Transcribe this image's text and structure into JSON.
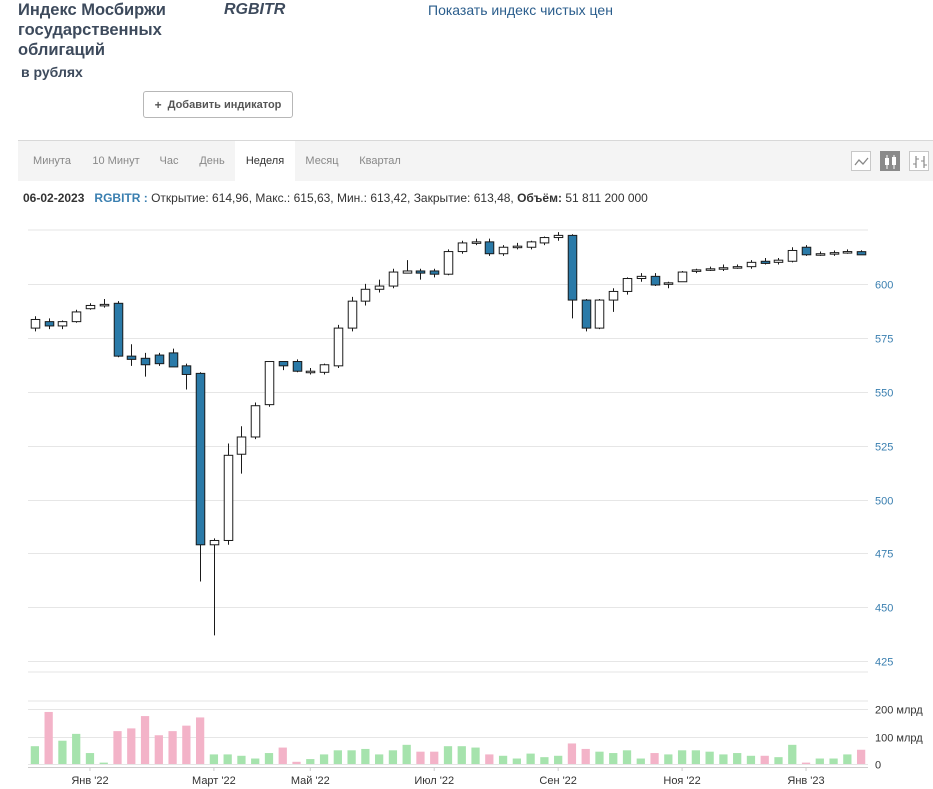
{
  "header": {
    "title": "Индекс Мосбиржи государственных облигаций",
    "subtitle": "в рублях",
    "ticker": "RGBITR",
    "clean_price_link": "Показать индекс чистых цен",
    "add_indicator_label": "Добавить индикатор"
  },
  "tabs": [
    {
      "label": "Минута",
      "active": false
    },
    {
      "label": "10 Минут",
      "active": false
    },
    {
      "label": "Час",
      "active": false
    },
    {
      "label": "День",
      "active": false
    },
    {
      "label": "Неделя",
      "active": true
    },
    {
      "label": "Месяц",
      "active": false
    },
    {
      "label": "Квартал",
      "active": false
    }
  ],
  "chart_types": [
    {
      "icon": "line-chart-icon",
      "active": false
    },
    {
      "icon": "candlestick-chart-icon",
      "active": true
    },
    {
      "icon": "ohlc-chart-icon",
      "active": false
    }
  ],
  "info_bar": {
    "date": "06-02-2023",
    "symbol": "RGBITR :",
    "open_label": "Открытие:",
    "open": "614,96",
    "high_label": "Макс.:",
    "high": "615,63",
    "low_label": "Мин.:",
    "low": "613,42",
    "close_label": "Закрытие:",
    "close": "613,48",
    "volume_label": "Объём:",
    "volume": "51 811 200 000"
  },
  "colors": {
    "up_fill": "#ffffff",
    "down_fill": "#2a7aa8",
    "candle_stroke": "#1a1a1a",
    "volume_up": "#a6e3ad",
    "volume_down": "#f3b3c8",
    "grid": "#e6e6e6",
    "axis_text": "#3a7fb0"
  },
  "chart_data": {
    "type": "candlestick",
    "ylim": [
      420,
      625
    ],
    "yticks": [
      425,
      450,
      475,
      500,
      525,
      550,
      575,
      600
    ],
    "volume_ylim": [
      0,
      230
    ],
    "volume_ticks": [
      {
        "value": 0,
        "label": "0"
      },
      {
        "value": 100,
        "label": "100 млрд"
      },
      {
        "value": 200,
        "label": "200 млрд"
      }
    ],
    "x_labels": [
      {
        "index": 4,
        "label": "Янв '22"
      },
      {
        "index": 13,
        "label": "Март '22"
      },
      {
        "index": 20,
        "label": "Май '22"
      },
      {
        "index": 29,
        "label": "Июл '22"
      },
      {
        "index": 38,
        "label": "Сен '22"
      },
      {
        "index": 47,
        "label": "Ноя '22"
      },
      {
        "index": 56,
        "label": "Янв '23"
      }
    ],
    "candles": [
      {
        "o": 579.5,
        "h": 585,
        "l": 578,
        "c": 583.5,
        "v": 65
      },
      {
        "o": 582.5,
        "h": 584,
        "l": 579,
        "c": 580.5,
        "v": 190
      },
      {
        "o": 580.5,
        "h": 583,
        "l": 579,
        "c": 582.5,
        "v": 85
      },
      {
        "o": 582.5,
        "h": 588,
        "l": 582,
        "c": 587,
        "v": 110
      },
      {
        "o": 588.5,
        "h": 591,
        "l": 588,
        "c": 590,
        "v": 40
      },
      {
        "o": 590,
        "h": 593,
        "l": 589,
        "c": 590.5,
        "v": 5
      },
      {
        "o": 591,
        "h": 592,
        "l": 566,
        "c": 566.5,
        "v": 120
      },
      {
        "o": 566.5,
        "h": 572,
        "l": 562,
        "c": 565,
        "v": 130
      },
      {
        "o": 565.5,
        "h": 568,
        "l": 557,
        "c": 562.5,
        "v": 175
      },
      {
        "o": 567,
        "h": 568,
        "l": 562,
        "c": 563,
        "v": 105
      },
      {
        "o": 568,
        "h": 570,
        "l": 562,
        "c": 561.5,
        "v": 120
      },
      {
        "o": 562,
        "h": 563,
        "l": 551,
        "c": 558,
        "v": 140
      },
      {
        "o": 558.5,
        "h": 559,
        "l": 462,
        "c": 479,
        "v": 170
      },
      {
        "o": 479,
        "h": 482,
        "l": 437,
        "c": 481,
        "v": 35
      },
      {
        "o": 481,
        "h": 526,
        "l": 479,
        "c": 520.5,
        "v": 35
      },
      {
        "o": 521,
        "h": 534,
        "l": 512,
        "c": 529,
        "v": 30
      },
      {
        "o": 529,
        "h": 545,
        "l": 528,
        "c": 543.5,
        "v": 20
      },
      {
        "o": 544,
        "h": 564,
        "l": 543,
        "c": 564,
        "v": 40
      },
      {
        "o": 564,
        "h": 564,
        "l": 560,
        "c": 562,
        "v": 60
      },
      {
        "o": 564,
        "h": 565,
        "l": 559,
        "c": 559.5,
        "v": 8
      },
      {
        "o": 559,
        "h": 561,
        "l": 558,
        "c": 559.5,
        "v": 18
      },
      {
        "o": 559,
        "h": 563,
        "l": 558,
        "c": 562.5,
        "v": 35
      },
      {
        "o": 562,
        "h": 581,
        "l": 561,
        "c": 579.5,
        "v": 50
      },
      {
        "o": 579.5,
        "h": 594,
        "l": 578,
        "c": 592,
        "v": 50
      },
      {
        "o": 592,
        "h": 600,
        "l": 590,
        "c": 597.5,
        "v": 55
      },
      {
        "o": 597.5,
        "h": 602,
        "l": 596,
        "c": 599,
        "v": 35
      },
      {
        "o": 599,
        "h": 607,
        "l": 598,
        "c": 605.5,
        "v": 50
      },
      {
        "o": 605,
        "h": 611,
        "l": 605,
        "c": 606,
        "v": 70
      },
      {
        "o": 606,
        "h": 607,
        "l": 602,
        "c": 605,
        "v": 45
      },
      {
        "o": 606,
        "h": 607,
        "l": 603,
        "c": 604.5,
        "v": 45
      },
      {
        "o": 604.5,
        "h": 616,
        "l": 604,
        "c": 615,
        "v": 65
      },
      {
        "o": 615,
        "h": 620,
        "l": 614,
        "c": 619,
        "v": 65
      },
      {
        "o": 619,
        "h": 621,
        "l": 618,
        "c": 619.5,
        "v": 60
      },
      {
        "o": 619.5,
        "h": 621,
        "l": 613,
        "c": 614,
        "v": 35
      },
      {
        "o": 614,
        "h": 618,
        "l": 613,
        "c": 617,
        "v": 30
      },
      {
        "o": 617,
        "h": 619,
        "l": 616,
        "c": 617.5,
        "v": 20
      },
      {
        "o": 617,
        "h": 620,
        "l": 616,
        "c": 619.5,
        "v": 38
      },
      {
        "o": 619,
        "h": 622,
        "l": 618,
        "c": 621.5,
        "v": 25
      },
      {
        "o": 621.5,
        "h": 624,
        "l": 620,
        "c": 622.5,
        "v": 30
      },
      {
        "o": 622.5,
        "h": 623,
        "l": 584,
        "c": 592.5,
        "v": 75
      },
      {
        "o": 592.5,
        "h": 593,
        "l": 578,
        "c": 579.5,
        "v": 55
      },
      {
        "o": 579.5,
        "h": 593,
        "l": 579,
        "c": 592.5,
        "v": 45
      },
      {
        "o": 592.5,
        "h": 598,
        "l": 587,
        "c": 596.5,
        "v": 40
      },
      {
        "o": 596.5,
        "h": 603,
        "l": 595,
        "c": 602.5,
        "v": 50
      },
      {
        "o": 602.5,
        "h": 605,
        "l": 601,
        "c": 603.5,
        "v": 20
      },
      {
        "o": 603.5,
        "h": 605,
        "l": 599,
        "c": 599.5,
        "v": 40
      },
      {
        "o": 600,
        "h": 601,
        "l": 598,
        "c": 600.5,
        "v": 35
      },
      {
        "o": 601,
        "h": 606,
        "l": 601,
        "c": 605.5,
        "v": 50
      },
      {
        "o": 606,
        "h": 607,
        "l": 605,
        "c": 606.5,
        "v": 50
      },
      {
        "o": 606.5,
        "h": 608,
        "l": 606,
        "c": 607,
        "v": 45
      },
      {
        "o": 607,
        "h": 609,
        "l": 606,
        "c": 607.5,
        "v": 35
      },
      {
        "o": 607.5,
        "h": 609,
        "l": 607,
        "c": 608,
        "v": 40
      },
      {
        "o": 608,
        "h": 611,
        "l": 607,
        "c": 610,
        "v": 30
      },
      {
        "o": 610.5,
        "h": 612,
        "l": 609,
        "c": 609.5,
        "v": 30
      },
      {
        "o": 610,
        "h": 612,
        "l": 609,
        "c": 611,
        "v": 25
      },
      {
        "o": 610.5,
        "h": 617,
        "l": 610,
        "c": 615.5,
        "v": 70
      },
      {
        "o": 617,
        "h": 618,
        "l": 613,
        "c": 613.5,
        "v": 5
      },
      {
        "o": 614,
        "h": 615,
        "l": 613,
        "c": 614,
        "v": 20
      },
      {
        "o": 614,
        "h": 615.5,
        "l": 613,
        "c": 614.5,
        "v": 20
      },
      {
        "o": 614.5,
        "h": 616,
        "l": 614,
        "c": 615,
        "v": 35
      },
      {
        "o": 614.96,
        "h": 615.63,
        "l": 613.42,
        "c": 613.48,
        "v": 52
      }
    ]
  }
}
